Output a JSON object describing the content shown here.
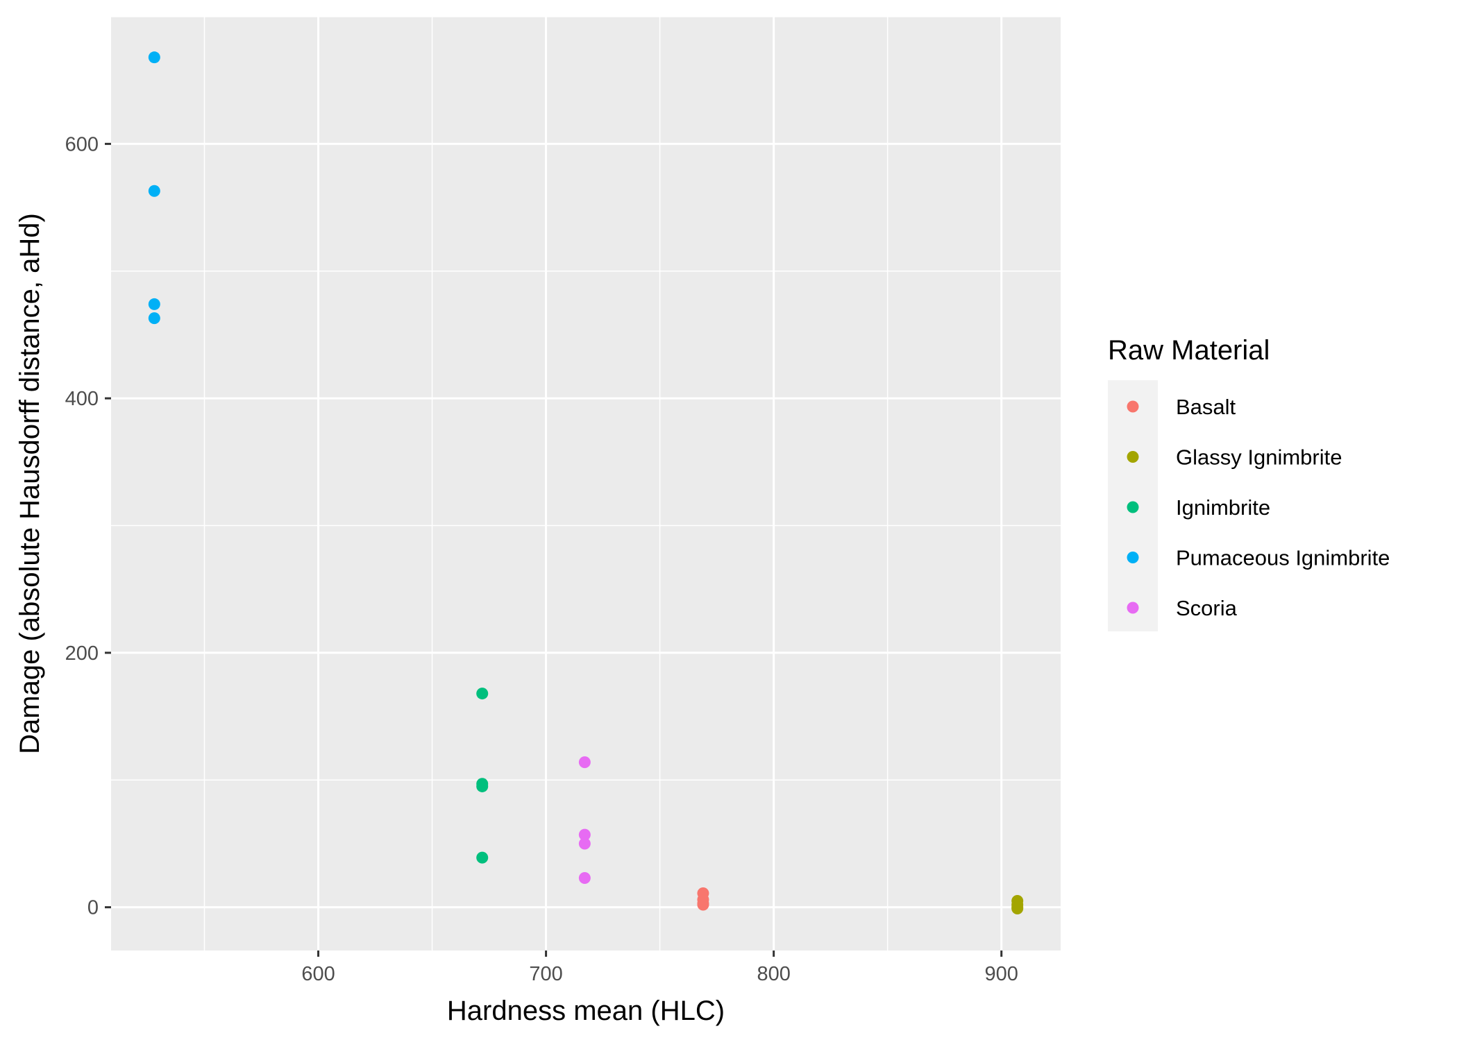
{
  "chart_data": {
    "type": "scatter",
    "title": "",
    "xlabel": "Hardness mean (HLC)",
    "ylabel": "Damage (absolute Hausdorff distance, aHd)",
    "xlim": [
      509,
      926
    ],
    "ylim": [
      -34,
      700
    ],
    "x_ticks": [
      600,
      700,
      800,
      900
    ],
    "y_ticks": [
      0,
      200,
      400,
      600
    ],
    "x_tick_labels": [
      "600",
      "700",
      "800",
      "900"
    ],
    "y_tick_labels": [
      "0",
      "200",
      "400",
      "600"
    ],
    "grid": true,
    "background": "#EBEBEB",
    "legend": {
      "title": "Raw Material",
      "placement": "right"
    },
    "series": [
      {
        "name": "Basalt",
        "color": "#F8766D",
        "points": [
          [
            769,
            11
          ],
          [
            769,
            6
          ],
          [
            769,
            3
          ],
          [
            769,
            2
          ]
        ]
      },
      {
        "name": "Glassy Ignimbrite",
        "color": "#A3A500",
        "points": [
          [
            907,
            5
          ],
          [
            907,
            2
          ],
          [
            907,
            0
          ],
          [
            907,
            -1
          ]
        ]
      },
      {
        "name": "Ignimbrite",
        "color": "#00BF7D",
        "points": [
          [
            672,
            168
          ],
          [
            672,
            97
          ],
          [
            672,
            95
          ],
          [
            672,
            39
          ]
        ]
      },
      {
        "name": "Pumaceous Ignimbrite",
        "color": "#00B0F6",
        "points": [
          [
            528,
            668
          ],
          [
            528,
            563
          ],
          [
            528,
            474
          ],
          [
            528,
            463
          ]
        ]
      },
      {
        "name": "Scoria",
        "color": "#E76BF3",
        "points": [
          [
            717,
            114
          ],
          [
            717,
            57
          ],
          [
            717,
            50
          ],
          [
            717,
            23
          ]
        ]
      }
    ]
  }
}
